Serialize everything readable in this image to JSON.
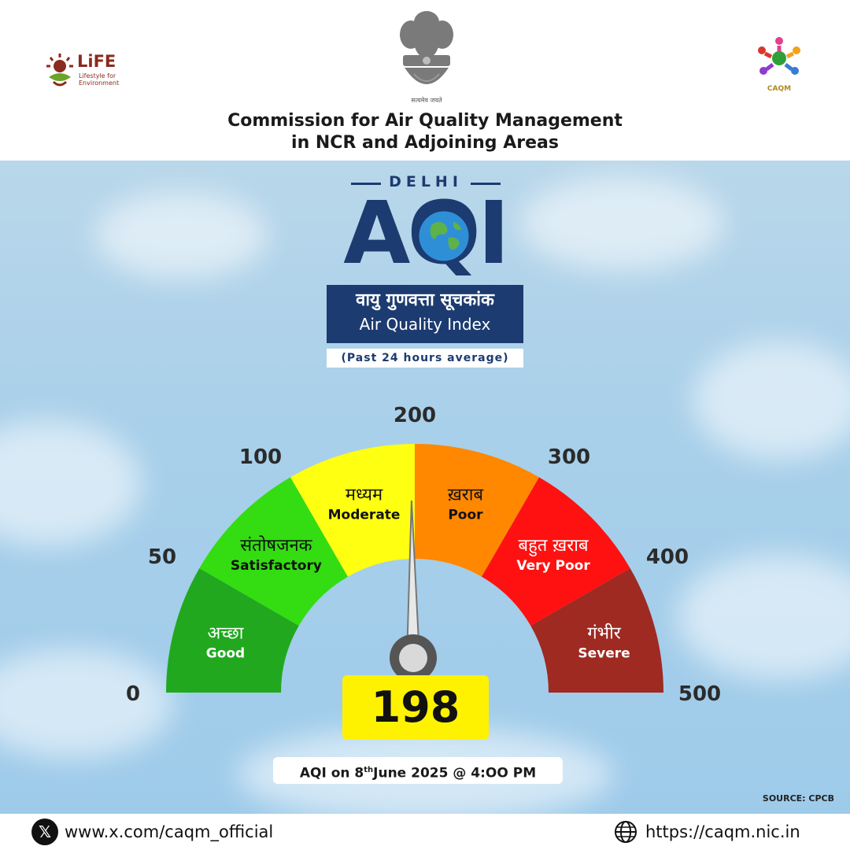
{
  "header": {
    "life_logo": {
      "title": "LiFE",
      "subtitle": "Lifestyle for Environment"
    },
    "emblem_motto": "सत्यमेव जयते",
    "caqm_logo_label": "CAQM",
    "title_line1": "Commission for Air Quality Management",
    "title_line2": "in NCR and Adjoining Areas"
  },
  "banner": {
    "city": "DELHI",
    "aqi_label": "AQI",
    "index_hindi": "वायु गुणवत्ता सूचकांक",
    "index_english": "Air Quality Index",
    "period": "(Past 24 hours average)"
  },
  "gauge": {
    "min": 0,
    "max": 500,
    "value": 198,
    "ticks": [
      "0",
      "50",
      "100",
      "200",
      "300",
      "400",
      "500"
    ],
    "categories": [
      {
        "hindi": "अच्छा",
        "english": "Good",
        "from": 0,
        "to": 50,
        "color": "#21a81f"
      },
      {
        "hindi": "संतोषजनक",
        "english": "Satisfactory",
        "from": 50,
        "to": 100,
        "color": "#33dd11"
      },
      {
        "hindi": "मध्यम",
        "english": "Moderate",
        "from": 100,
        "to": 200,
        "color": "#ffff11"
      },
      {
        "hindi": "ख़राब",
        "english": "Poor",
        "from": 200,
        "to": 300,
        "color": "#ff8800"
      },
      {
        "hindi": "बहुत ख़राब",
        "english": "Very Poor",
        "from": 300,
        "to": 400,
        "color": "#ff1111"
      },
      {
        "hindi": "गंभीर",
        "english": "Severe",
        "from": 400,
        "to": 500,
        "color": "#9e2a22"
      }
    ]
  },
  "reading": {
    "value_text": "198",
    "date_prefix": "AQI on 8",
    "date_sup": "th",
    "date_suffix": "June 2025 @ 4:OO PM"
  },
  "source": "SOURCE: CPCB",
  "footer": {
    "x_icon": "x-logo-icon",
    "x_url": "www.x.com/caqm_official",
    "web_icon": "globe-icon",
    "web_url": "https://caqm.nic.in"
  },
  "colors": {
    "navy": "#1c3b70",
    "value_box": "#fff200"
  }
}
